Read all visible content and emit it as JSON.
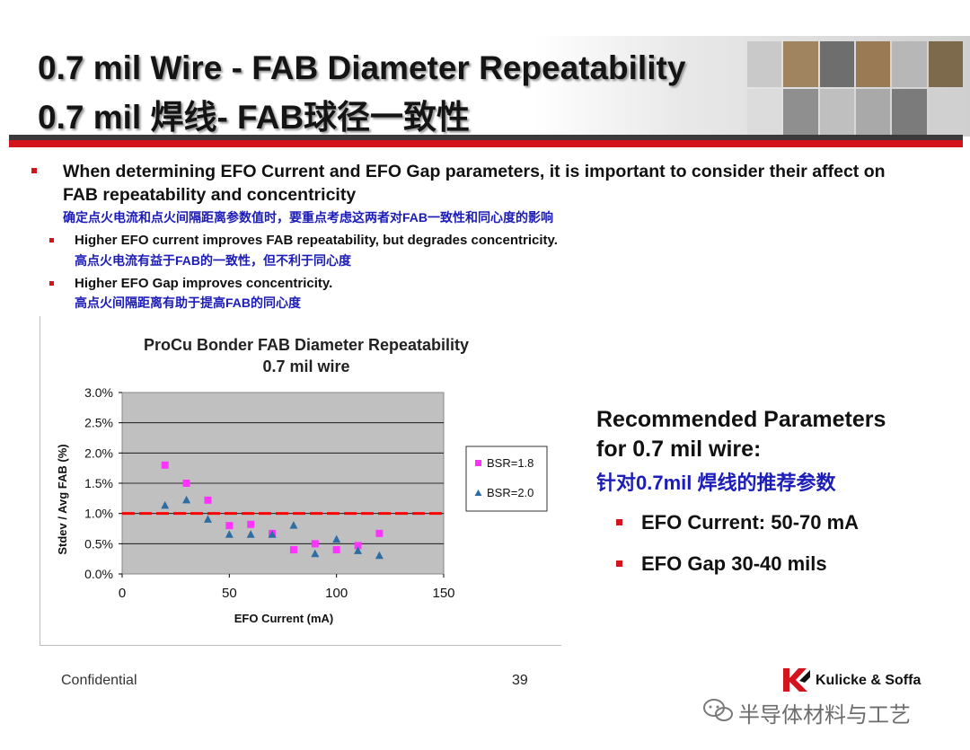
{
  "title": {
    "line1": "0.7 mil Wire - FAB Diameter Repeatability",
    "line2": "0.7 mil 焊线- FAB球径一致性"
  },
  "bullets": {
    "main": {
      "en": "When determining EFO Current and EFO Gap parameters, it is important to consider their affect on FAB repeatability and concentricity",
      "cn": "确定点火电流和点火间隔距离参数值时，要重点考虑这两者对FAB一致性和同心度的影响"
    },
    "sub": [
      {
        "en": "Higher EFO current improves FAB repeatability, but degrades concentricity.",
        "cn": "高点火电流有益于FAB的一致性，但不利于同心度"
      },
      {
        "en": "Higher EFO Gap improves concentricity.",
        "cn": "高点火间隔距离有助于提高FAB的同心度"
      }
    ]
  },
  "chart_data": {
    "type": "scatter",
    "title": "ProCu Bonder FAB Diameter Repeatability",
    "subtitle": "0.7 mil wire",
    "xlabel": "EFO Current (mA)",
    "ylabel": "Stdev / Avg FAB (%)",
    "xlim": [
      0,
      150
    ],
    "ylim": [
      0,
      3.0
    ],
    "xticks": [
      "0",
      "50",
      "100",
      "150"
    ],
    "yticks": [
      "0.0%",
      "0.5%",
      "1.0%",
      "1.5%",
      "2.0%",
      "2.5%",
      "3.0%"
    ],
    "grid": true,
    "legend_position": "right",
    "reference_line": {
      "y": 1.0,
      "color": "#ff0000",
      "style": "dashed"
    },
    "plot_background": "#c0c0c0",
    "series": [
      {
        "name": "BSR=1.8",
        "marker": "square",
        "color": "#ff33ff",
        "points": [
          [
            20,
            1.8
          ],
          [
            30,
            1.5
          ],
          [
            40,
            1.22
          ],
          [
            50,
            0.8
          ],
          [
            60,
            0.82
          ],
          [
            70,
            0.67
          ],
          [
            80,
            0.4
          ],
          [
            90,
            0.5
          ],
          [
            100,
            0.4
          ],
          [
            110,
            0.47
          ],
          [
            120,
            0.67
          ]
        ]
      },
      {
        "name": "BSR=2.0",
        "marker": "triangle",
        "color": "#2d6da3",
        "points": [
          [
            20,
            1.13
          ],
          [
            30,
            1.22
          ],
          [
            40,
            0.9
          ],
          [
            50,
            0.65
          ],
          [
            60,
            0.65
          ],
          [
            70,
            0.65
          ],
          [
            80,
            0.8
          ],
          [
            90,
            0.33
          ],
          [
            100,
            0.57
          ],
          [
            110,
            0.38
          ],
          [
            120,
            0.3
          ]
        ]
      }
    ]
  },
  "recommendation": {
    "title_line1": "Recommended Parameters",
    "title_line2": "for 0.7 mil wire:",
    "cn": "针对0.7mil 焊线的推荐参数",
    "items": [
      "EFO Current: 50-70 mA",
      "EFO Gap 30-40 mils"
    ]
  },
  "footer": {
    "confidential": "Confidential",
    "page": "39",
    "logo_text": "Kulicke & Soffa",
    "watermark": "半导体材料与工艺"
  },
  "colors": {
    "accent_red": "#d4141c",
    "chinese_text": "#1c1cb8"
  }
}
